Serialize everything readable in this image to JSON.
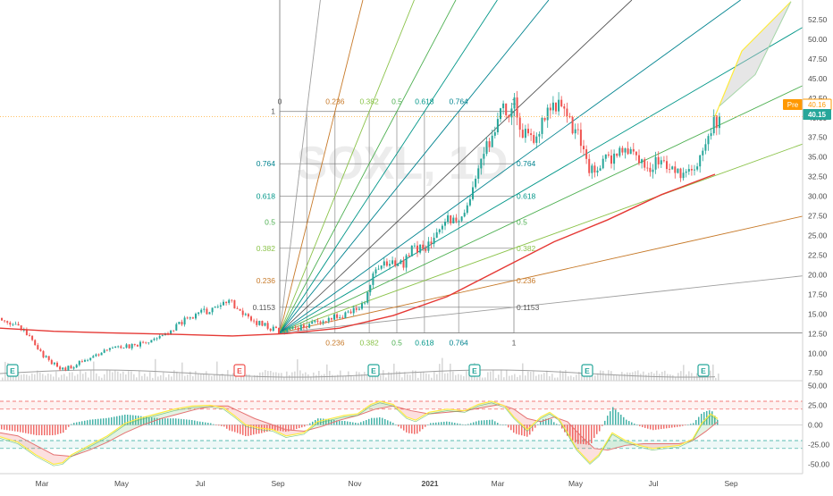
{
  "colors": {
    "up": "#26a69a",
    "down": "#ef5350",
    "ma": "#e53935",
    "grid": "#000000",
    "pre_badge": "#ff9800",
    "last_badge": "#26a69a",
    "macd_line": "#ffeb3b",
    "signal_line": "#e57373"
  },
  "watermark": "SOXL, 1D",
  "price_badges": {
    "pre_label": "Pre",
    "pre_value": "40.16",
    "last_value": "40.15"
  },
  "chart_data": [
    {
      "type": "candlestick",
      "panel": "price",
      "x_axis": {
        "labels": [
          "Mar",
          "May",
          "Jul",
          "Sep",
          "Nov",
          "2021",
          "Mar",
          "May",
          "Jul",
          "Sep"
        ]
      },
      "y_axis": {
        "range": [
          6.5,
          55
        ],
        "ticks": [
          "52.50",
          "50.00",
          "47.50",
          "45.00",
          "42.50",
          "40.00",
          "37.50",
          "35.00",
          "32.50",
          "30.00",
          "27.50",
          "25.00",
          "22.50",
          "20.00",
          "17.50",
          "15.00",
          "12.50",
          "10.00",
          "7.50"
        ]
      },
      "closes_path": [
        [
          0,
          14.5
        ],
        [
          15,
          13.8
        ],
        [
          30,
          12.2
        ],
        [
          45,
          10.0
        ],
        [
          60,
          8.5
        ],
        [
          70,
          7.9
        ],
        [
          85,
          8.6
        ],
        [
          100,
          9.5
        ],
        [
          115,
          10.2
        ],
        [
          130,
          10.6
        ],
        [
          150,
          11.0
        ],
        [
          170,
          11.7
        ],
        [
          185,
          12.6
        ],
        [
          200,
          13.8
        ],
        [
          215,
          14.8
        ],
        [
          230,
          15.3
        ],
        [
          245,
          16.2
        ],
        [
          255,
          16.7
        ],
        [
          265,
          15.6
        ],
        [
          280,
          14.1
        ],
        [
          300,
          13.3
        ],
        [
          313,
          12.6
        ],
        [
          330,
          13.1
        ],
        [
          345,
          13.6
        ],
        [
          360,
          14.1
        ],
        [
          375,
          14.6
        ],
        [
          390,
          15.1
        ],
        [
          405,
          16.1
        ],
        [
          420,
          20.8
        ],
        [
          435,
          21.8
        ],
        [
          450,
          21.2
        ],
        [
          460,
          23.2
        ],
        [
          475,
          23.6
        ],
        [
          490,
          26.1
        ],
        [
          505,
          27.3
        ],
        [
          515,
          26.6
        ],
        [
          530,
          31.0
        ],
        [
          545,
          37.0
        ],
        [
          560,
          40.5
        ],
        [
          575,
          41.6
        ],
        [
          585,
          37.6
        ],
        [
          600,
          37.1
        ],
        [
          615,
          42.1
        ],
        [
          630,
          41.1
        ],
        [
          645,
          38.1
        ],
        [
          660,
          33.1
        ],
        [
          675,
          34.1
        ],
        [
          690,
          36.1
        ],
        [
          705,
          35.1
        ],
        [
          720,
          33.6
        ],
        [
          735,
          34.6
        ],
        [
          750,
          33.1
        ],
        [
          765,
          32.6
        ],
        [
          780,
          34.1
        ],
        [
          790,
          38.1
        ],
        [
          800,
          39.5
        ],
        [
          805,
          40.15
        ]
      ],
      "moving_average": [
        [
          0,
          13.2
        ],
        [
          60,
          12.8
        ],
        [
          120,
          12.6
        ],
        [
          200,
          12.4
        ],
        [
          260,
          12.2
        ],
        [
          320,
          12.5
        ],
        [
          380,
          13.2
        ],
        [
          440,
          14.8
        ],
        [
          500,
          17.2
        ],
        [
          560,
          20.7
        ],
        [
          620,
          24.2
        ],
        [
          680,
          27.0
        ],
        [
          740,
          30.2
        ],
        [
          800,
          32.8
        ]
      ],
      "gann_fan": {
        "origin": [
          313,
          12.6
        ],
        "unit": [
          575,
          40.8
        ],
        "levels": [
          "0",
          "0.1153",
          "0.236",
          "0.382",
          "0.5",
          "0.618",
          "0.764",
          "1"
        ]
      },
      "earnings_markers": [
        "E",
        "E",
        "E",
        "E",
        "E",
        "E"
      ]
    },
    {
      "type": "histogram",
      "panel": "oscillator",
      "y_axis": {
        "range": [
          -62,
          55
        ],
        "ticks": [
          "50.00",
          "25.00",
          "0.00",
          "-25.00",
          "-50.00"
        ]
      },
      "macd_line": [
        [
          0,
          -15
        ],
        [
          20,
          -22
        ],
        [
          40,
          -38
        ],
        [
          60,
          -50
        ],
        [
          70,
          -48
        ],
        [
          80,
          -38
        ],
        [
          100,
          -26
        ],
        [
          120,
          -14
        ],
        [
          130,
          -6
        ],
        [
          140,
          2
        ],
        [
          155,
          8
        ],
        [
          175,
          14
        ],
        [
          195,
          20
        ],
        [
          215,
          24
        ],
        [
          235,
          25
        ],
        [
          250,
          22
        ],
        [
          262,
          12
        ],
        [
          275,
          0
        ],
        [
          290,
          -4
        ],
        [
          305,
          -6
        ],
        [
          320,
          -14
        ],
        [
          340,
          -10
        ],
        [
          355,
          4
        ],
        [
          370,
          8
        ],
        [
          385,
          12
        ],
        [
          400,
          14
        ],
        [
          415,
          26
        ],
        [
          425,
          30
        ],
        [
          440,
          26
        ],
        [
          455,
          10
        ],
        [
          465,
          6
        ],
        [
          480,
          16
        ],
        [
          500,
          20
        ],
        [
          520,
          18
        ],
        [
          535,
          26
        ],
        [
          550,
          30
        ],
        [
          565,
          24
        ],
        [
          575,
          10
        ],
        [
          590,
          -6
        ],
        [
          605,
          10
        ],
        [
          615,
          16
        ],
        [
          625,
          8
        ],
        [
          635,
          -10
        ],
        [
          645,
          -30
        ],
        [
          660,
          -48
        ],
        [
          670,
          -38
        ],
        [
          685,
          -10
        ],
        [
          700,
          -20
        ],
        [
          715,
          -26
        ],
        [
          730,
          -30
        ],
        [
          745,
          -28
        ],
        [
          760,
          -26
        ],
        [
          775,
          -18
        ],
        [
          785,
          2
        ],
        [
          795,
          14
        ],
        [
          803,
          8
        ]
      ],
      "signal_line": [
        [
          0,
          -10
        ],
        [
          20,
          -14
        ],
        [
          40,
          -26
        ],
        [
          60,
          -38
        ],
        [
          80,
          -40
        ],
        [
          100,
          -32
        ],
        [
          120,
          -22
        ],
        [
          140,
          -10
        ],
        [
          160,
          0
        ],
        [
          180,
          8
        ],
        [
          200,
          14
        ],
        [
          220,
          20
        ],
        [
          240,
          24
        ],
        [
          255,
          24
        ],
        [
          270,
          16
        ],
        [
          285,
          8
        ],
        [
          300,
          2
        ],
        [
          320,
          -6
        ],
        [
          340,
          -8
        ],
        [
          360,
          -2
        ],
        [
          380,
          6
        ],
        [
          400,
          12
        ],
        [
          420,
          20
        ],
        [
          440,
          24
        ],
        [
          460,
          18
        ],
        [
          480,
          14
        ],
        [
          500,
          16
        ],
        [
          520,
          18
        ],
        [
          540,
          22
        ],
        [
          560,
          26
        ],
        [
          575,
          20
        ],
        [
          590,
          8
        ],
        [
          605,
          4
        ],
        [
          620,
          10
        ],
        [
          635,
          4
        ],
        [
          650,
          -14
        ],
        [
          665,
          -30
        ],
        [
          680,
          -32
        ],
        [
          700,
          -26
        ],
        [
          720,
          -24
        ],
        [
          740,
          -24
        ],
        [
          760,
          -24
        ],
        [
          775,
          -20
        ],
        [
          790,
          -8
        ],
        [
          803,
          4
        ]
      ],
      "reference_levels": [
        30,
        20,
        -20,
        -30
      ]
    }
  ]
}
